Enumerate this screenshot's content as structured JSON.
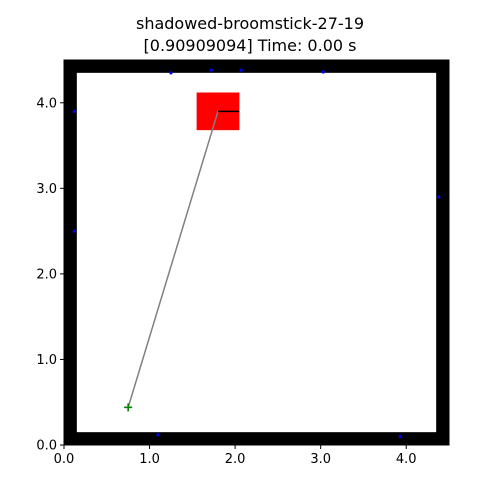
{
  "figure": {
    "title_line1": "shadowed-broomstick-27-19",
    "title_line2": "[0.90909094] Time: 0.00 s"
  },
  "chart_data": {
    "type": "scatter",
    "title": "shadowed-broomstick-27-19\n[0.90909094] Time: 0.00 s",
    "xlabel": "",
    "ylabel": "",
    "xlim": [
      0.0,
      4.5
    ],
    "ylim": [
      0.0,
      4.5
    ],
    "x_ticks": [
      0.0,
      1.0,
      2.0,
      3.0,
      4.0
    ],
    "y_ticks": [
      0.0,
      1.0,
      2.0,
      3.0,
      4.0
    ],
    "x_tick_labels": [
      "0.0",
      "1.0",
      "2.0",
      "3.0",
      "4.0"
    ],
    "y_tick_labels": [
      "0.0",
      "1.0",
      "2.0",
      "3.0",
      "4.0"
    ],
    "grid": false,
    "walls": {
      "color": "#000000",
      "outer": [
        0.0,
        0.0,
        4.5,
        4.5
      ],
      "inner": [
        0.15,
        0.15,
        4.35,
        4.35
      ]
    },
    "target": {
      "x": [
        1.55,
        2.05
      ],
      "y": [
        3.68,
        4.12
      ],
      "color": "#ff0000"
    },
    "start_marker": {
      "x": 0.75,
      "y": 0.44,
      "marker": "+",
      "color": "#008000"
    },
    "path": {
      "color": "#808080",
      "points": [
        [
          0.75,
          0.44
        ],
        [
          1.8,
          3.9
        ]
      ]
    },
    "heading_segment": {
      "color": "#000000",
      "points": [
        [
          1.8,
          3.9
        ],
        [
          2.05,
          3.9
        ]
      ]
    },
    "dots": {
      "color": "#0000ff",
      "points": [
        [
          1.25,
          4.35
        ],
        [
          1.72,
          4.38
        ],
        [
          2.07,
          4.38
        ],
        [
          3.03,
          4.36
        ],
        [
          0.12,
          3.9
        ],
        [
          0.12,
          2.5
        ],
        [
          4.38,
          2.9
        ],
        [
          1.1,
          0.12
        ],
        [
          3.93,
          0.1
        ]
      ]
    }
  }
}
